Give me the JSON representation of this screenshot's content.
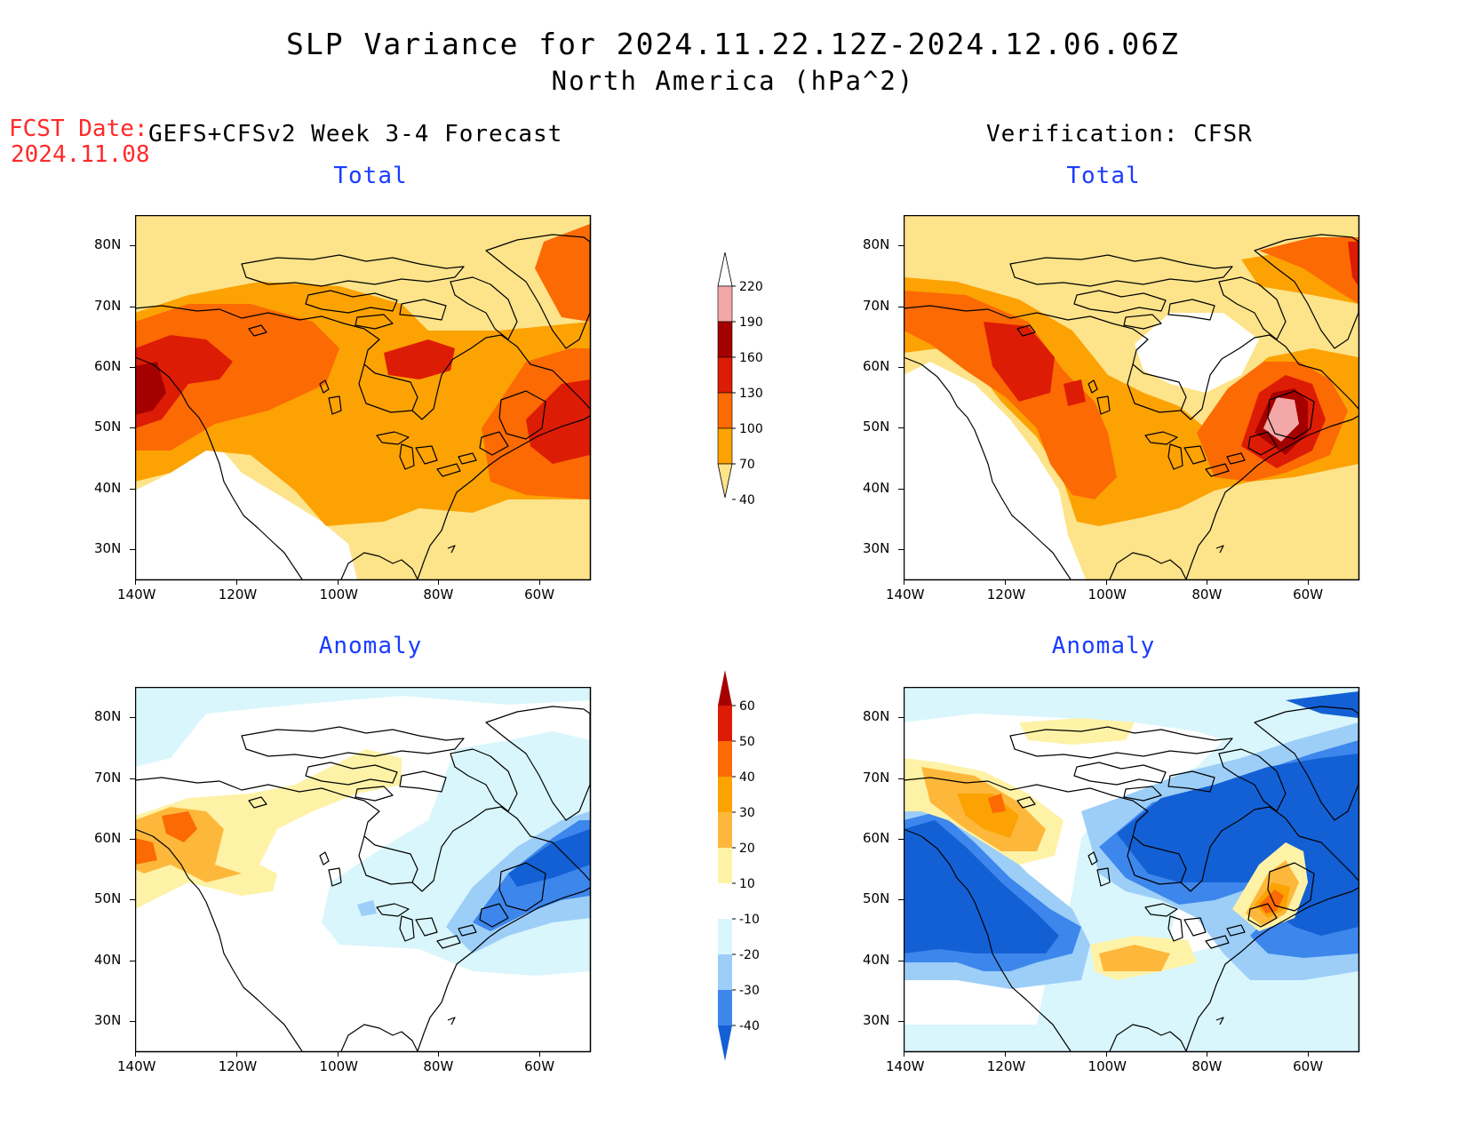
{
  "header": {
    "title": "SLP Variance for 2024.11.22.12Z-2024.12.06.06Z",
    "subtitle": "North America (hPa^2)",
    "fcst_date_label": "FCST Date:",
    "fcst_date_value": "2024.11.08",
    "left_column_title": "GEFS+CFSv2 Week 3-4 Forecast",
    "right_column_title": "Verification: CFSR"
  },
  "panels": {
    "top_left": {
      "title": "Total"
    },
    "top_right": {
      "title": "Total"
    },
    "bottom_left": {
      "title": "Anomaly"
    },
    "bottom_right": {
      "title": "Anomaly"
    }
  },
  "axes": {
    "lat_labels": [
      "80N",
      "70N",
      "60N",
      "50N",
      "40N",
      "30N"
    ],
    "lon_labels": [
      "140W",
      "120W",
      "100W",
      "80W",
      "60W"
    ],
    "lat_range": [
      25,
      85
    ],
    "lon_range": [
      -140,
      -50
    ]
  },
  "colorbars": {
    "total": {
      "labels": [
        "220",
        "190",
        "160",
        "130",
        "100",
        "70",
        "40"
      ],
      "colors": [
        "#ffffff",
        "#f4a7a7",
        "#a50000",
        "#dd1c05",
        "#fc6a03",
        "#fca203",
        "#fde38a"
      ]
    },
    "anomaly": {
      "labels": [
        "60",
        "50",
        "40",
        "30",
        "20",
        "10",
        "-10",
        "-20",
        "-30",
        "-40"
      ],
      "colors": [
        "#a50000",
        "#dd1c05",
        "#fc6a03",
        "#fca203",
        "#fdb83c",
        "#fef2a7",
        "#ffffff",
        "#d9f6fc",
        "#9ccef8",
        "#3d86ec",
        "#1360d5"
      ]
    }
  }
}
